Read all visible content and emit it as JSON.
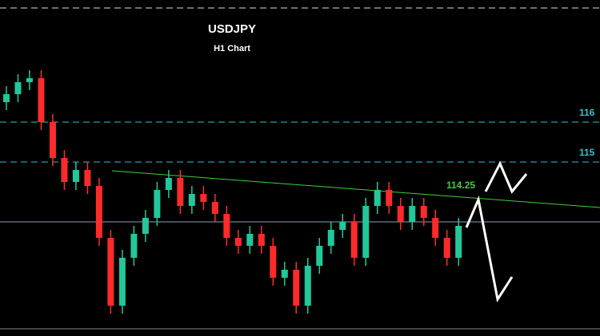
{
  "chart_data": {
    "type": "candlestick",
    "title": "USDJPY",
    "subtitle": "H1 Chart",
    "ylim": [
      110.64,
      119.06
    ],
    "xlim": [
      -0.55,
      51.2
    ],
    "up_color": "#22c79a",
    "down_color": "#ff2a2a",
    "open": [
      116.5,
      116.7,
      117.0,
      117.1,
      116.0,
      115.1,
      114.5,
      114.8,
      114.4,
      113.1,
      111.4,
      112.6,
      113.2,
      113.6,
      114.3,
      114.6,
      113.9,
      114.2,
      114.0,
      113.7,
      113.1,
      112.9,
      113.2,
      112.9,
      112.1,
      112.3,
      111.4,
      112.4,
      112.9,
      113.3,
      113.5,
      112.6,
      113.9,
      114.3,
      113.9,
      113.5,
      113.9,
      113.6,
      113.1,
      112.6
    ],
    "high": [
      116.9,
      117.2,
      117.3,
      117.3,
      116.2,
      115.3,
      115.0,
      115.0,
      114.6,
      113.3,
      112.8,
      113.4,
      113.8,
      114.5,
      114.8,
      114.8,
      114.4,
      114.4,
      114.2,
      113.9,
      113.3,
      113.4,
      113.4,
      113.1,
      112.5,
      112.5,
      112.6,
      113.1,
      113.5,
      113.7,
      113.7,
      114.1,
      114.5,
      114.5,
      114.1,
      114.1,
      114.1,
      113.8,
      113.3,
      113.6
    ],
    "low": [
      116.3,
      116.5,
      116.8,
      115.8,
      114.9,
      114.3,
      114.3,
      114.2,
      112.9,
      111.2,
      111.2,
      112.4,
      113.0,
      113.4,
      114.1,
      113.7,
      113.7,
      113.8,
      113.5,
      112.9,
      112.7,
      112.7,
      112.7,
      111.9,
      111.9,
      111.2,
      111.2,
      112.2,
      112.7,
      113.1,
      112.4,
      112.4,
      113.7,
      113.7,
      113.3,
      113.3,
      113.4,
      112.9,
      112.4,
      112.4
    ],
    "close": [
      116.7,
      117.0,
      117.1,
      116.0,
      115.1,
      114.5,
      114.8,
      114.4,
      113.1,
      111.4,
      112.6,
      113.2,
      113.6,
      114.3,
      114.6,
      113.9,
      114.2,
      114.0,
      113.7,
      113.1,
      112.9,
      113.2,
      112.9,
      112.1,
      112.3,
      111.4,
      112.4,
      112.9,
      113.3,
      113.5,
      112.6,
      113.9,
      114.3,
      113.9,
      113.5,
      113.9,
      113.6,
      113.1,
      112.6,
      113.4
    ],
    "levels": [
      {
        "value": 118.86,
        "color": "#dddddd",
        "dashed": true
      },
      {
        "value": 116,
        "label": "116",
        "color": "#35c0d0",
        "dashed": true
      },
      {
        "value": 115,
        "label": "115",
        "color": "#35c0d0",
        "dashed": true
      },
      {
        "value": 113.5,
        "color": "#8aa0b8",
        "dashed": false
      }
    ],
    "trendline": {
      "x": [
        9.1,
        51.2
      ],
      "values": [
        114.78,
        113.86
      ],
      "color": "#3ecf3e"
    },
    "annotation": {
      "text": "114.25",
      "color": "#3ecf3e"
    }
  }
}
